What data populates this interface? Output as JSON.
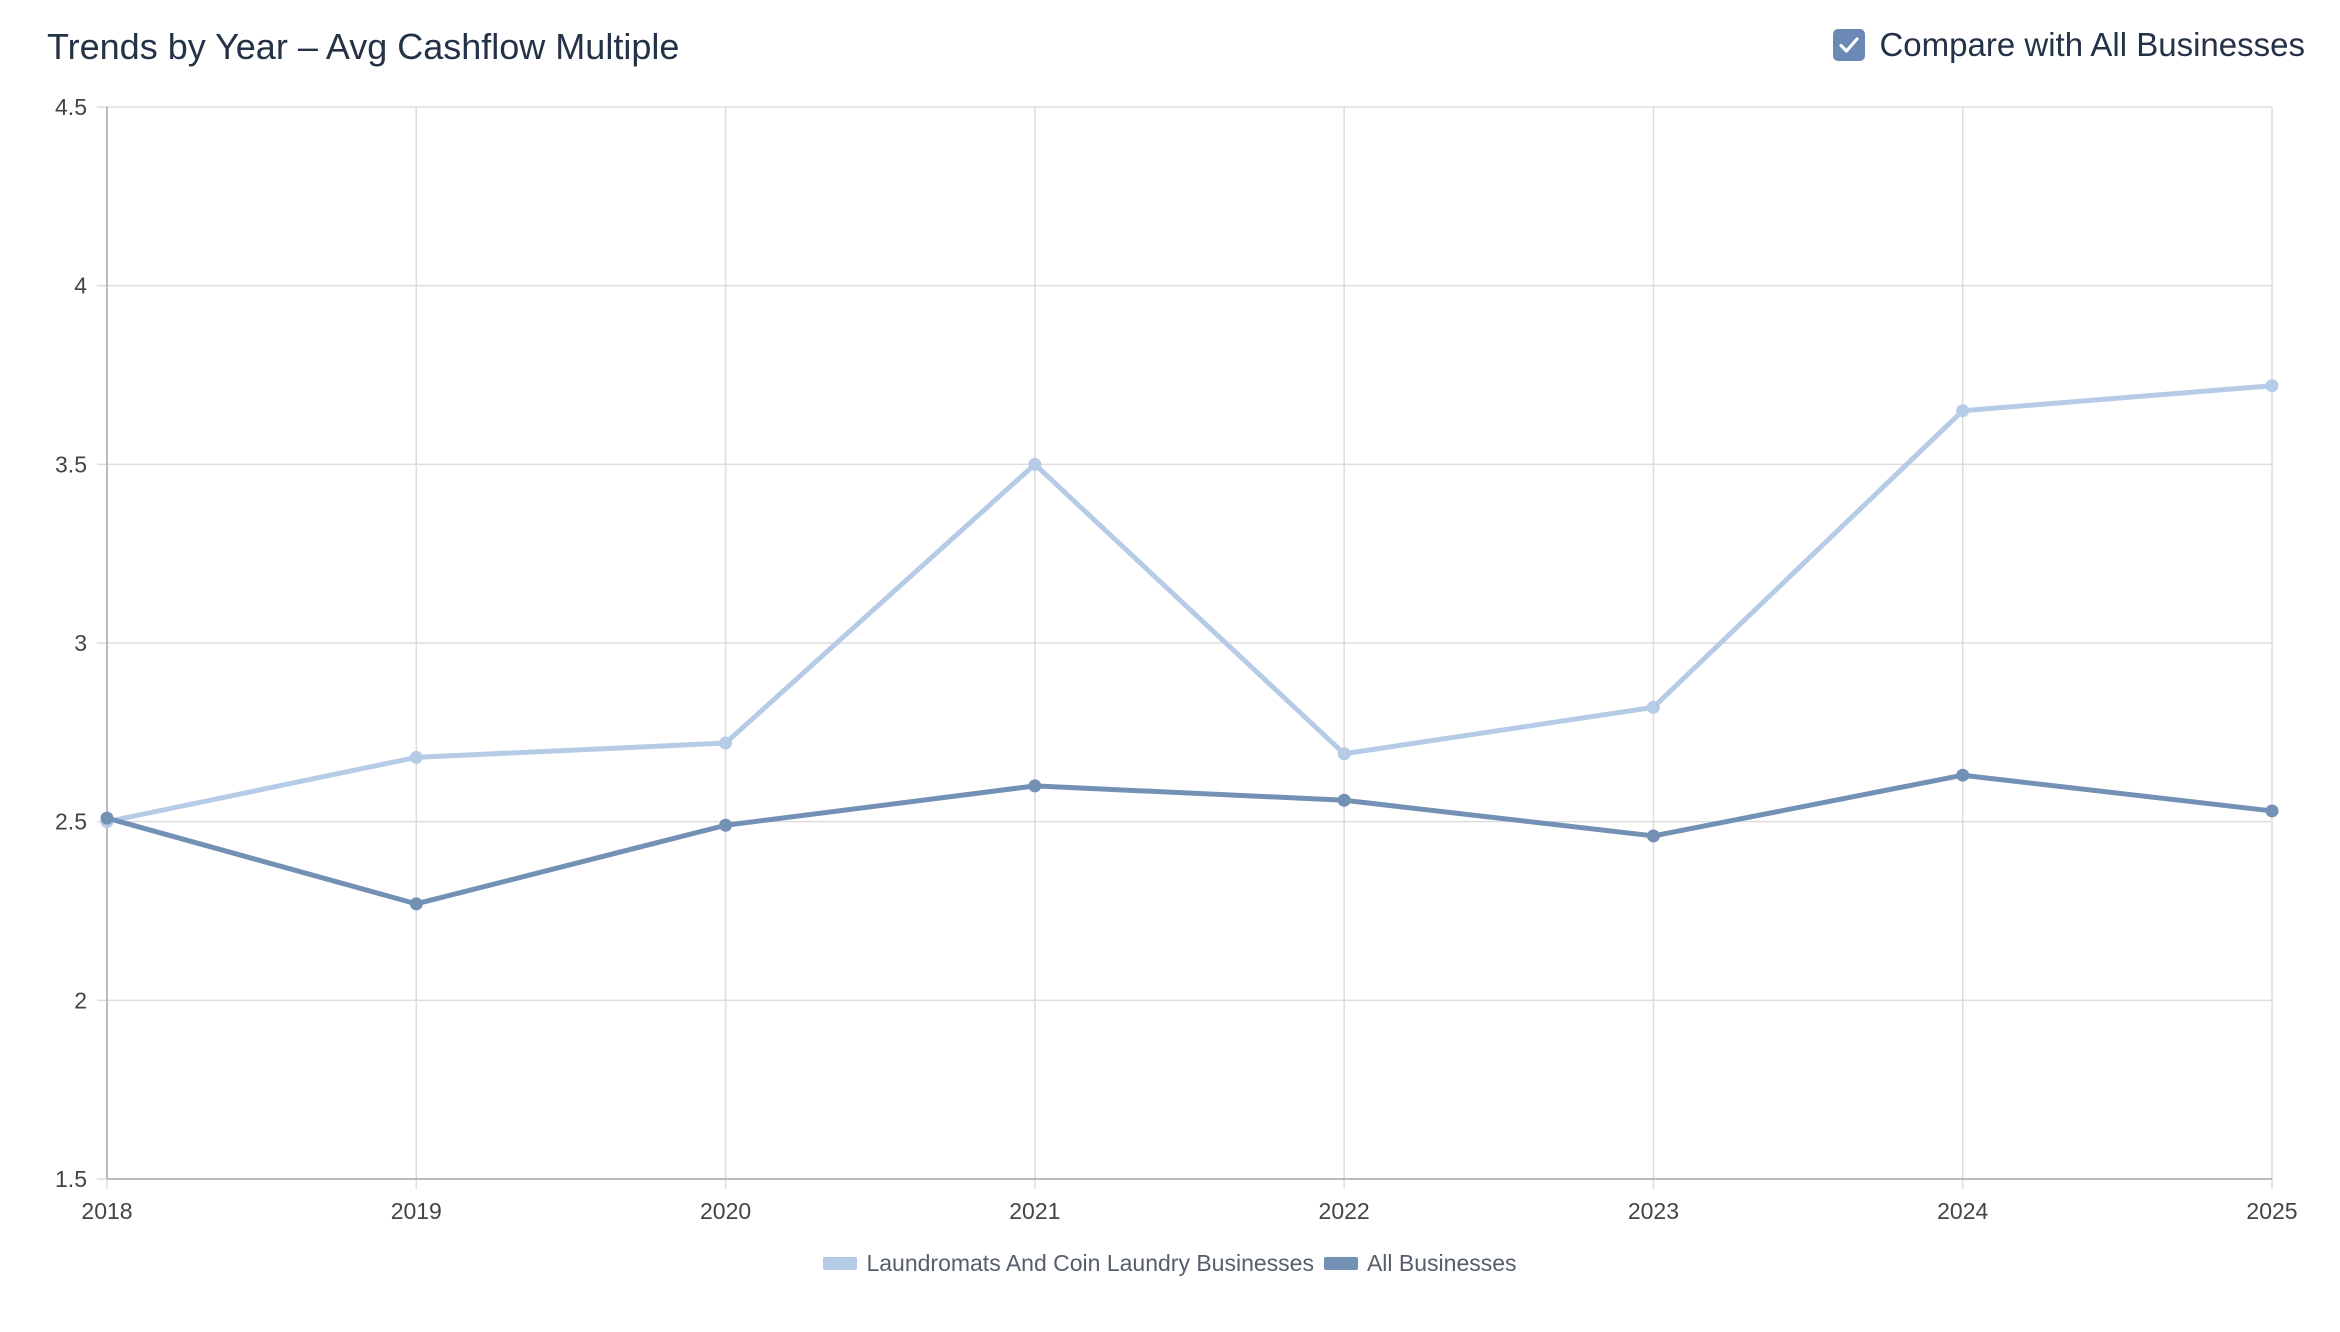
{
  "header": {
    "title": "Trends by Year – Avg Cashflow Multiple",
    "compare_label": "Compare with All Businesses",
    "compare_checked": true
  },
  "colors": {
    "series_primary": "#b6cce6",
    "series_secondary": "#7390b5",
    "checkbox": "#6c89b5",
    "grid": "#dddddd",
    "axis": "#bbbbbb",
    "tick_text": "#444444"
  },
  "chart_data": {
    "type": "line",
    "title": "Trends by Year – Avg Cashflow Multiple",
    "x": [
      "2018",
      "2019",
      "2020",
      "2021",
      "2022",
      "2023",
      "2024",
      "2025"
    ],
    "ylim": [
      1.5,
      4.5
    ],
    "yticks": [
      "4.5",
      "4",
      "3.5",
      "3",
      "2.5",
      "2",
      "1.5"
    ],
    "grid": true,
    "legend_position": "bottom-center",
    "series": [
      {
        "name": "Laundromats And Coin Laundry Businesses",
        "color": "#b6cce6",
        "values": [
          2.5,
          2.68,
          2.72,
          3.5,
          2.69,
          2.82,
          3.65,
          3.72
        ]
      },
      {
        "name": "All Businesses",
        "color": "#7390b5",
        "values": [
          2.51,
          2.27,
          2.49,
          2.6,
          2.56,
          2.46,
          2.63,
          2.53
        ]
      }
    ]
  }
}
